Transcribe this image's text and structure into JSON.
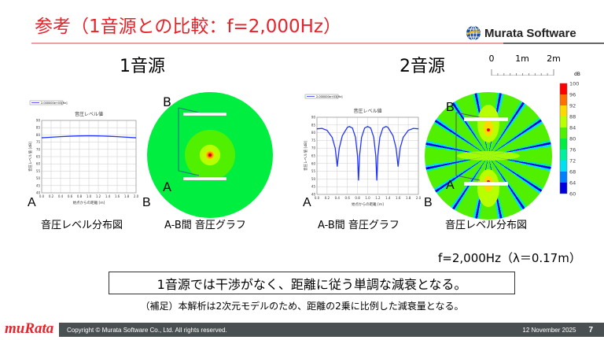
{
  "title": "参考（1音源との比較：f=2,000Hz）",
  "logo": {
    "text": "Murata Software",
    "brand_color": "#e6232a"
  },
  "left": {
    "heading": "1音源",
    "caption_graph": "音圧レベル分布図",
    "caption_map": "A-B間 音圧グラフ"
  },
  "right": {
    "heading": "2音源",
    "caption_graph": "A-B間 音圧グラフ",
    "caption_map": "音圧レベル分布図"
  },
  "point_a": "A",
  "point_b": "B",
  "scale_bar": {
    "labels": [
      "0",
      "1m",
      "2m"
    ]
  },
  "colorbar": {
    "unit": "dB",
    "ticks": [
      "100",
      "96",
      "92",
      "88",
      "84",
      "80",
      "76",
      "72",
      "68",
      "64",
      "60"
    ],
    "colors": [
      "#ff0000",
      "#ff7000",
      "#ffd800",
      "#b8ff00",
      "#50f000",
      "#00ee40",
      "#00f0a0",
      "#00e0f0",
      "#0080ff",
      "#0000e0"
    ]
  },
  "frequency_note": "f=2,000Hz（λ＝0.17m）",
  "conclusion": "1音源では干渉がなく、距離に従う単調な減衰となる。",
  "supplement": "（補足）本解析は2次元モデルのため、距離の2乗に比例した減衰量となる。",
  "footer": {
    "logo": "muRata",
    "copyright": "Copyright © Murata Software Co., Ltd. All rights reserved.",
    "date": "12 November 2025",
    "page": "7"
  },
  "chart_data": [
    {
      "type": "line",
      "title": "音圧レベル値",
      "legend": "2.000000e+03[Hz]",
      "xlabel": "始点からの距離 [m]",
      "ylabel": "音圧レベル値 [dB]",
      "xlim": [
        0,
        2
      ],
      "ylim": [
        40,
        90
      ],
      "grid": true,
      "x": [
        0,
        0.2,
        0.4,
        0.6,
        0.8,
        1.0,
        1.2,
        1.4,
        1.6,
        1.8,
        2.0
      ],
      "y": [
        78,
        78.4,
        78.8,
        79.1,
        79.3,
        79.4,
        79.3,
        79.1,
        78.8,
        78.4,
        78
      ]
    },
    {
      "type": "line",
      "title": "音圧レベル値",
      "legend": "2.000000e+03[Hz]",
      "xlabel": "始点からの距離 [m]",
      "ylabel": "音圧レベル値 [dB]",
      "xlim": [
        0,
        2
      ],
      "ylim": [
        40,
        90
      ],
      "grid": true,
      "x": [
        0,
        0.1,
        0.2,
        0.3,
        0.36,
        0.4,
        0.44,
        0.5,
        0.6,
        0.64,
        0.7,
        0.76,
        0.8,
        0.82,
        0.84,
        0.88,
        0.94,
        1.0,
        1.06,
        1.12,
        1.16,
        1.18,
        1.2,
        1.24,
        1.3,
        1.36,
        1.4,
        1.5,
        1.56,
        1.6,
        1.64,
        1.7,
        1.8,
        1.9,
        2.0
      ],
      "y": [
        82.5,
        82.8,
        81.5,
        77,
        70,
        58,
        70,
        78,
        83.5,
        84,
        83,
        77,
        65,
        49,
        65,
        77,
        83,
        84,
        83,
        77,
        65,
        49,
        65,
        77,
        83,
        84,
        83.5,
        78,
        70,
        58,
        70,
        77,
        81.5,
        82.8,
        82.5
      ]
    }
  ]
}
